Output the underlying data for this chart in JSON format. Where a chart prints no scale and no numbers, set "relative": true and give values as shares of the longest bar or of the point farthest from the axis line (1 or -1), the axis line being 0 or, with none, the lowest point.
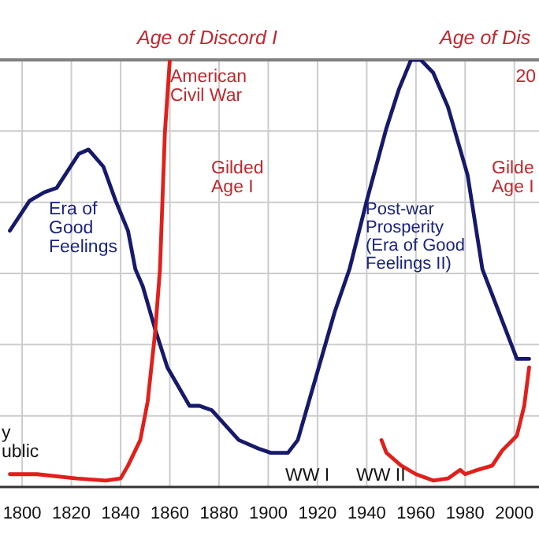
{
  "chart_data": {
    "type": "line",
    "relative": true,
    "xlim": [
      1791,
      2010
    ],
    "xticks": [
      1800,
      1820,
      1840,
      1860,
      1880,
      1900,
      1920,
      1940,
      1960,
      1980,
      2000
    ],
    "grid": true,
    "marker": "none",
    "line_style": "solid",
    "series": [
      {
        "color": "#17196b",
        "x": [
          1795,
          1803,
          1809,
          1814,
          1823,
          1827,
          1833,
          1838,
          1843,
          1846,
          1849,
          1854,
          1859,
          1868,
          1872,
          1877,
          1888,
          1896,
          1901,
          1908,
          1912,
          1916,
          1922,
          1927,
          1933,
          1940,
          1948,
          1953,
          1958,
          1962,
          1967,
          1973,
          1981,
          1987,
          1993,
          2001,
          2006
        ],
        "values": [
          0.6,
          0.67,
          0.69,
          0.7,
          0.78,
          0.79,
          0.75,
          0.67,
          0.6,
          0.51,
          0.47,
          0.37,
          0.28,
          0.19,
          0.19,
          0.18,
          0.11,
          0.09,
          0.08,
          0.08,
          0.11,
          0.19,
          0.31,
          0.41,
          0.51,
          0.67,
          0.84,
          0.93,
          1.0,
          1.0,
          0.97,
          0.89,
          0.73,
          0.51,
          0.42,
          0.3,
          0.3
        ]
      },
      {
        "color": "#e0201b",
        "x": [
          1795,
          1806,
          1822,
          1834,
          1840,
          1843,
          1848,
          1851,
          1854,
          1856,
          1858,
          1860
        ],
        "values": [
          0.03,
          0.03,
          0.02,
          0.015,
          0.02,
          0.05,
          0.11,
          0.2,
          0.36,
          0.51,
          0.83,
          1.0
        ]
      },
      {
        "color": "#e0201b",
        "x": [
          1946,
          1948,
          1950,
          1954,
          1960,
          1967,
          1973,
          1978,
          1980,
          1985,
          1991,
          1995,
          2001,
          2004,
          2006
        ],
        "values": [
          0.11,
          0.08,
          0.07,
          0.05,
          0.03,
          0.015,
          0.02,
          0.04,
          0.03,
          0.04,
          0.05,
          0.085,
          0.12,
          0.19,
          0.28
        ]
      }
    ],
    "annotations": [
      "Age of Discord I",
      "American\nCivil War",
      "Gilded\nAge I",
      "Era of\nGood\nFeelings",
      "Post-war\nProsperity\n(Era of Good\nFeelings II)",
      "WW I",
      "WW II",
      "Age of Dis",
      "20",
      "Gilde\nAge I",
      "y\nublic"
    ]
  }
}
